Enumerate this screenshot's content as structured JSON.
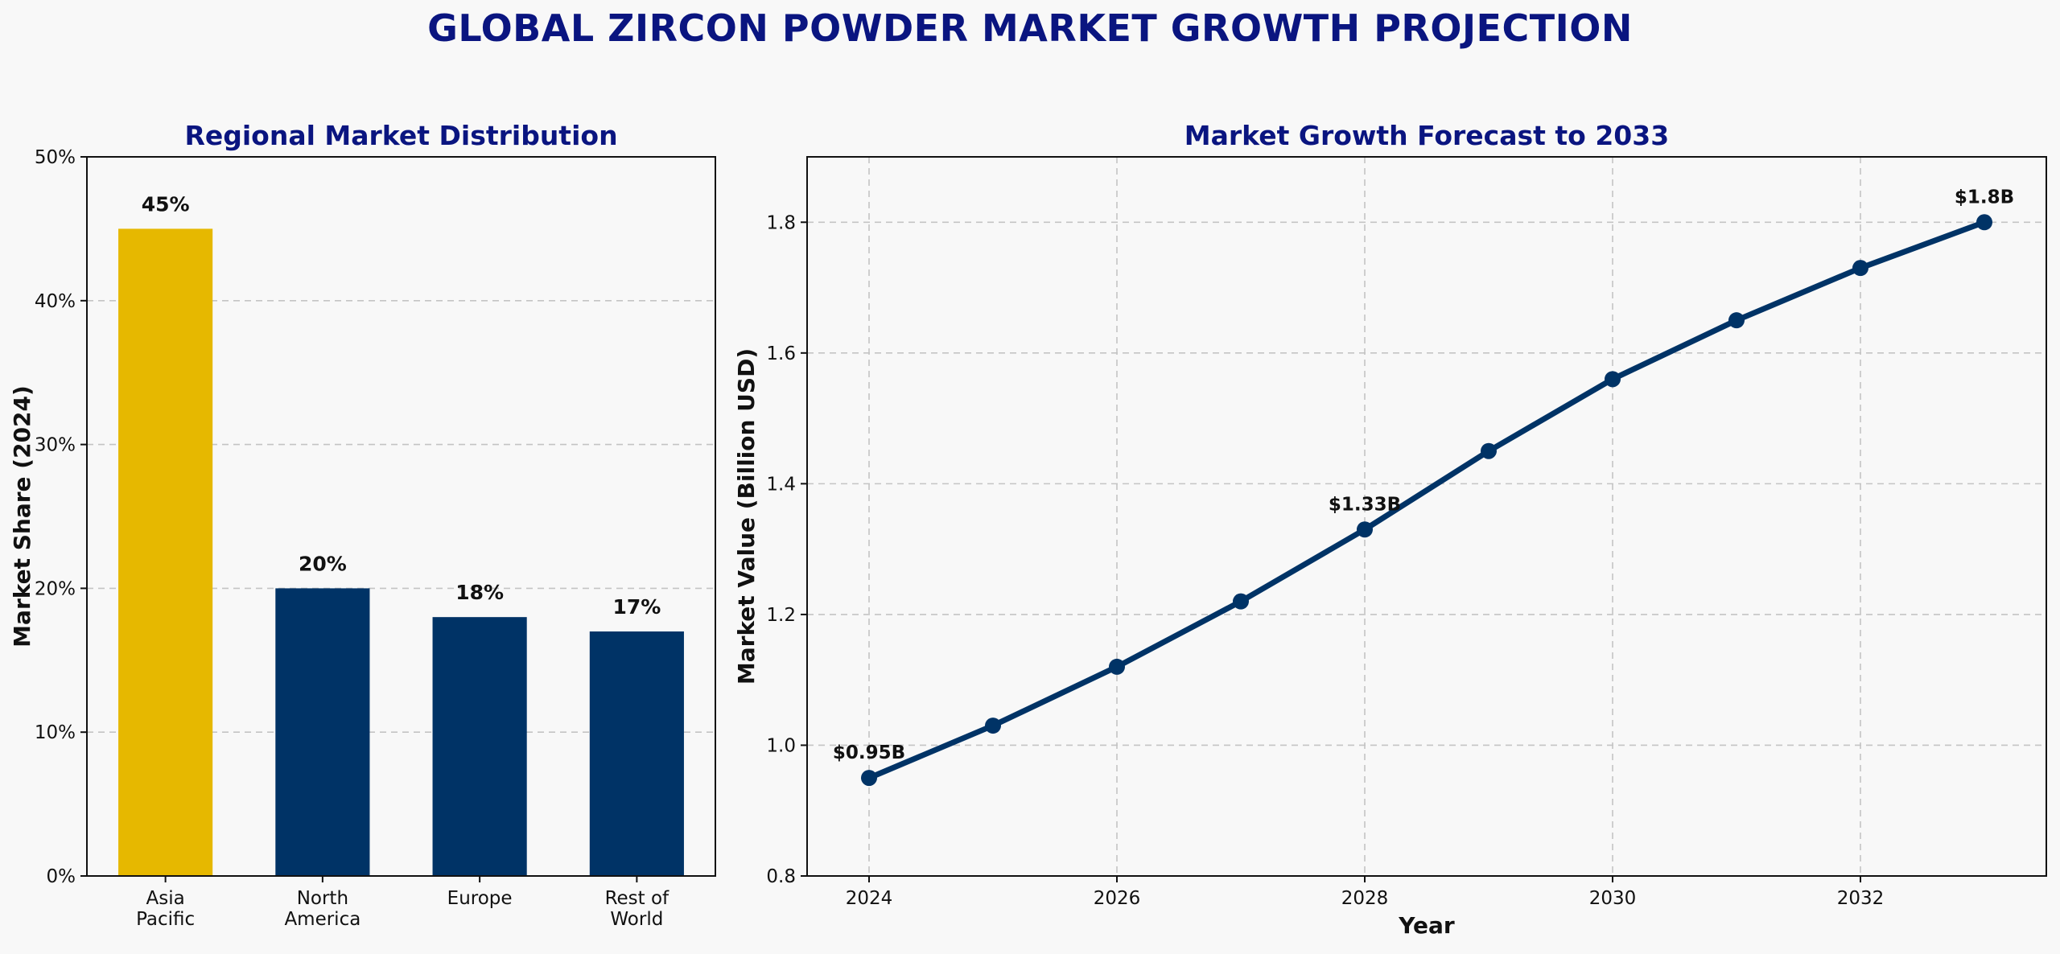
{
  "title": "GLOBAL ZIRCON POWDER MARKET GROWTH PROJECTION",
  "colors": {
    "title": "#0a1580",
    "highlight_bar": "#e6b800",
    "primary": "#003366"
  },
  "chart_data": [
    {
      "type": "bar",
      "title": "Regional Market Distribution",
      "xlabel": "",
      "ylabel": "Market Share (2024)",
      "categories": [
        [
          "Asia",
          "Pacific"
        ],
        [
          "North",
          "America"
        ],
        [
          "Europe"
        ],
        [
          "Rest of",
          "World"
        ]
      ],
      "values": [
        45,
        20,
        18,
        17
      ],
      "data_labels": [
        "45%",
        "20%",
        "18%",
        "17%"
      ],
      "bar_colors": [
        "#e6b800",
        "#003366",
        "#003366",
        "#003366"
      ],
      "ylim": [
        0,
        50
      ],
      "yticks": [
        0,
        10,
        20,
        30,
        40,
        50
      ],
      "ytick_labels": [
        "0%",
        "10%",
        "20%",
        "30%",
        "40%",
        "50%"
      ],
      "grid": "y-dashed"
    },
    {
      "type": "line",
      "title": "Market Growth Forecast to 2033",
      "xlabel": "Year",
      "ylabel": "Market Value (Billion USD)",
      "x": [
        2024,
        2025,
        2026,
        2027,
        2028,
        2029,
        2030,
        2031,
        2032,
        2033
      ],
      "values": [
        0.95,
        1.03,
        1.12,
        1.22,
        1.33,
        1.45,
        1.56,
        1.65,
        1.73,
        1.8
      ],
      "annotations": [
        {
          "x": 2024,
          "y": 0.95,
          "text": "$0.95B"
        },
        {
          "x": 2028,
          "y": 1.33,
          "text": "$1.33B"
        },
        {
          "x": 2033,
          "y": 1.8,
          "text": "$1.8B"
        }
      ],
      "xlim": [
        2023.5,
        2033.5
      ],
      "ylim": [
        0.8,
        1.9
      ],
      "xticks": [
        2024,
        2026,
        2028,
        2030,
        2032
      ],
      "yticks": [
        0.8,
        1.0,
        1.2,
        1.4,
        1.6,
        1.8
      ],
      "ytick_labels": [
        "0.8",
        "1.0",
        "1.2",
        "1.4",
        "1.6",
        "1.8"
      ],
      "grid": "both-dashed",
      "color": "#003366"
    }
  ]
}
